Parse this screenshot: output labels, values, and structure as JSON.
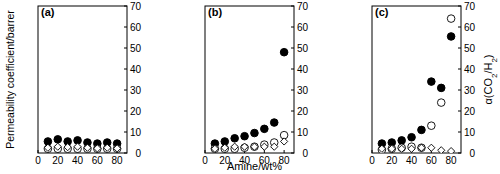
{
  "chart_data": [
    {
      "type": "scatter",
      "title": "(a)",
      "y_label": "Permeability coefficient/barrer",
      "x": [
        10,
        20,
        30,
        40,
        50,
        60,
        70,
        80
      ],
      "xlim": [
        0,
        90
      ],
      "xticks": [
        0,
        20,
        40,
        60,
        80
      ],
      "ylim": [
        0,
        700
      ],
      "y2lim": [
        0,
        70
      ],
      "y2ticks": [
        0,
        10,
        20,
        30,
        40,
        50,
        60,
        70
      ],
      "series": [
        {
          "color": "#000000",
          "marker": "filled_circle",
          "values": [
            55,
            65,
            55,
            60,
            50,
            45,
            50,
            45
          ]
        },
        {
          "color": "#000000",
          "marker": "open_circle",
          "axis": "y2",
          "values": [
            2,
            2,
            2,
            2,
            2,
            2,
            2,
            2
          ]
        },
        {
          "color": "#000000",
          "marker": "open_diamond",
          "values": [
            25,
            30,
            28,
            30,
            25,
            22,
            25,
            22
          ]
        }
      ]
    },
    {
      "type": "scatter",
      "title": "(b)",
      "x_label": "Amine/wt%",
      "x": [
        10,
        20,
        30,
        40,
        50,
        60,
        70,
        80
      ],
      "xlim": [
        0,
        90
      ],
      "xticks": [
        0,
        20,
        40,
        60,
        80
      ],
      "ylim": [
        0,
        700
      ],
      "y2lim": [
        0,
        70
      ],
      "y2ticks": [
        0,
        10,
        20,
        30,
        40,
        50,
        60,
        70
      ],
      "series": [
        {
          "color": "#000000",
          "marker": "filled_circle",
          "values": [
            45,
            55,
            70,
            80,
            95,
            115,
            145,
            480
          ]
        },
        {
          "color": "#000000",
          "marker": "open_circle",
          "axis": "y2",
          "values": [
            2,
            2,
            2,
            2.5,
            3,
            4,
            5,
            8.5
          ]
        },
        {
          "color": "#000000",
          "marker": "open_diamond",
          "values": [
            20,
            25,
            30,
            30,
            30,
            30,
            30,
            55
          ]
        }
      ]
    },
    {
      "type": "scatter",
      "title": "(c)",
      "y2_label": "α(CO2/H2)",
      "x": [
        10,
        20,
        30,
        40,
        50,
        60,
        70,
        80
      ],
      "xlim": [
        0,
        90
      ],
      "xticks": [
        0,
        20,
        40,
        60,
        80
      ],
      "ylim": [
        0,
        700
      ],
      "y2lim": [
        0,
        70
      ],
      "y2ticks": [
        0,
        10,
        20,
        30,
        40,
        50,
        60,
        70
      ],
      "series": [
        {
          "color": "#000000",
          "marker": "filled_circle",
          "values": [
            45,
            50,
            60,
            75,
            110,
            340,
            310,
            555
          ]
        },
        {
          "color": "#000000",
          "marker": "open_circle",
          "axis": "y2",
          "values": [
            1.5,
            2,
            2.5,
            3,
            2.5,
            13,
            24,
            64
          ]
        },
        {
          "color": "#000000",
          "marker": "open_diamond",
          "values": [
            20,
            20,
            20,
            20,
            25,
            25,
            13,
            9
          ]
        }
      ]
    }
  ]
}
